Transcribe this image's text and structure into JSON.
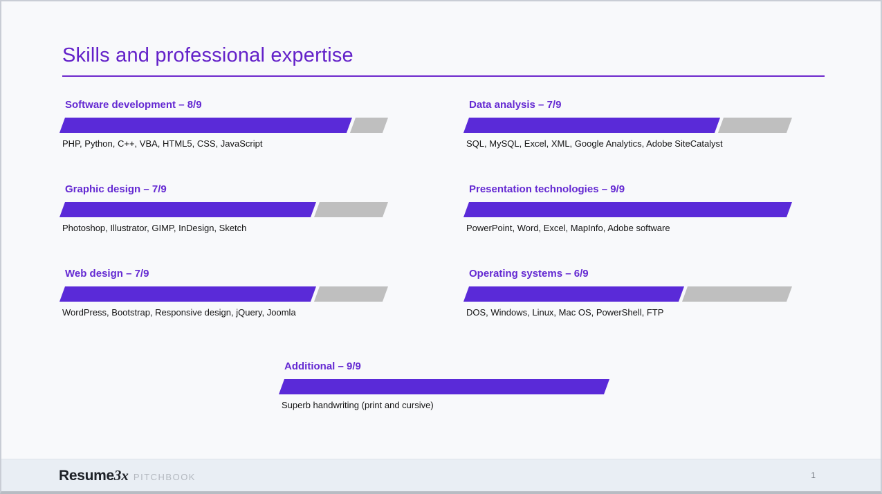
{
  "slide": {
    "title": "Skills and professional expertise",
    "page_number": "1"
  },
  "footer": {
    "brand": "Resume",
    "brand_suffix": "3x",
    "tagline": "PITCHBOOK"
  },
  "colors": {
    "accent_purple": "#6321c9",
    "heading_purple": "#6429d2",
    "bar_purple": "#5a2ad8",
    "bar_gray": "#bfbfbf",
    "footer_bg": "#e9eef4",
    "slide_bg": "#f8f9fb"
  },
  "skills": [
    {
      "label": "Software development – 8/9",
      "name": "Software development",
      "value": 8,
      "max": 9,
      "details": "PHP, Python, C++, VBA, HTML5, CSS, JavaScript"
    },
    {
      "label": "Data analysis – 7/9",
      "name": "Data analysis",
      "value": 7,
      "max": 9,
      "details": "SQL, MySQL, Excel, XML, Google Analytics, Adobe SiteCatalyst"
    },
    {
      "label": "Graphic design – 7/9",
      "name": "Graphic design",
      "value": 7,
      "max": 9,
      "details": "Photoshop, Illustrator, GIMP, InDesign, Sketch"
    },
    {
      "label": "Presentation technologies – 9/9",
      "name": "Presentation technologies",
      "value": 9,
      "max": 9,
      "details": "PowerPoint, Word, Excel, MapInfo, Adobe software"
    },
    {
      "label": "Web design – 7/9",
      "name": "Web design",
      "value": 7,
      "max": 9,
      "details": "WordPress, Bootstrap, Responsive design, jQuery, Joomla"
    },
    {
      "label": "Operating systems – 6/9",
      "name": "Operating systems",
      "value": 6,
      "max": 9,
      "details": "DOS, Windows, Linux, Mac OS, PowerShell, FTP"
    },
    {
      "label": "Additional – 9/9",
      "name": "Additional",
      "value": 9,
      "max": 9,
      "details": "Superb handwriting (print and cursive)"
    }
  ]
}
